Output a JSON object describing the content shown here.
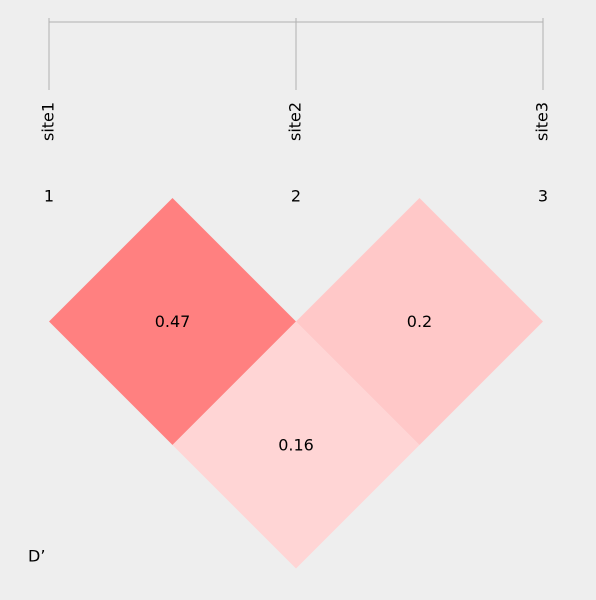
{
  "chart_data": {
    "type": "ld-heatmap",
    "sites": [
      "site1",
      "site2",
      "site3"
    ],
    "site_numbers": [
      1,
      2,
      3
    ],
    "values": [
      [
        0.47,
        0.16
      ],
      [
        0.2
      ]
    ],
    "colors": [
      [
        "#ff8080",
        "#ffd5d5"
      ],
      [
        "#ffc8c8"
      ]
    ],
    "measure": "D’"
  }
}
